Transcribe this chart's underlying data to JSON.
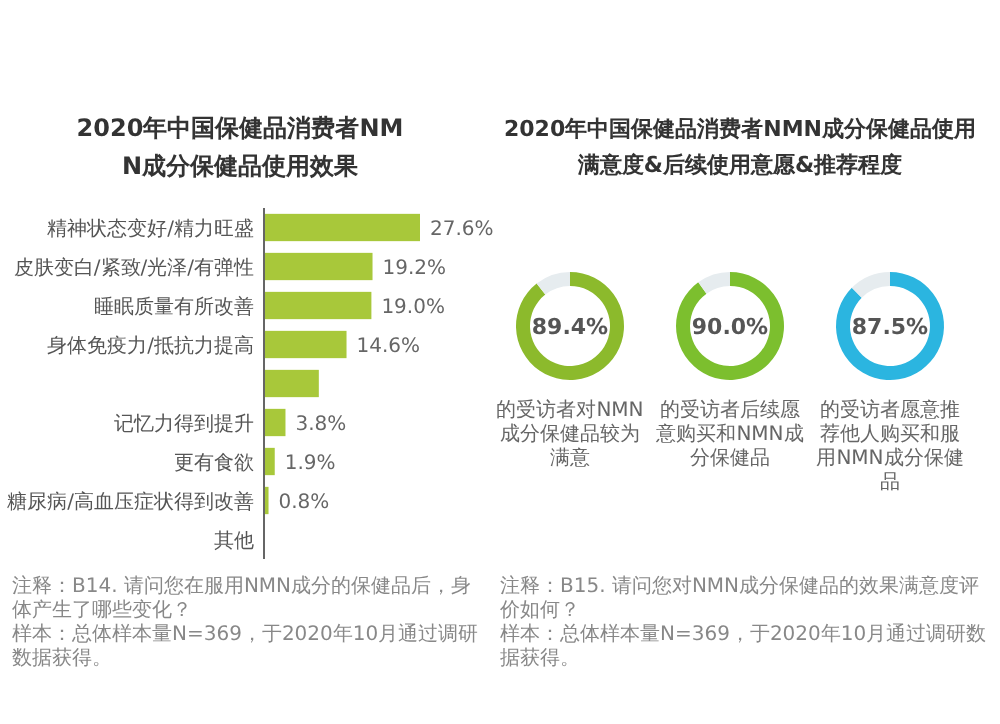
{
  "chart_data": [
    {
      "type": "bar",
      "orientation": "horizontal",
      "title": "2020年中国保健品消费者NMN成分保健品使用效果",
      "color": "#a8c83a",
      "categories": [
        "精神状态变好/精力旺盛",
        "皮肤变白/紧致/光泽/有弹性",
        "睡眠质量有所改善",
        "身体免疫力/抵抗力提高",
        null,
        "记忆力得到提升",
        "更有食欲",
        "糖尿病/高血压症状得到改善",
        "其他"
      ],
      "values": [
        27.6,
        19.2,
        19.0,
        14.6,
        9.7,
        3.8,
        1.9,
        0.8,
        null
      ],
      "value_labels": [
        "27.6%",
        "19.2%",
        "19.0%",
        "14.6%",
        null,
        "3.8%",
        "1.9%",
        "0.8%",
        null
      ],
      "annotations": [
        "注释：B14. 请问您在服用NMN成分的保健品后，身体产生了哪些变化？",
        "样本：总体样本量N=369，于2020年10月通过调研数据获得。"
      ]
    },
    {
      "type": "donut",
      "title": "2020年中国保健品消费者NMN成分保健品使用满意度&后续使用意愿&推荐程度",
      "categories": [
        "的受访者对NMN成分保健品较为满意",
        null
      ],
      "values": [
        89.4,
        10.6
      ],
      "colors": [
        "#8cba2c",
        "#e6ecef"
      ],
      "value_labels": [
        "89.4%",
        null
      ],
      "annotations": [
        "注释：B15. 请问您对NMN成分保健品的效果满意度评价如何？",
        "样本：总体样本量N=369，于2020年10月通过调研数据获得。"
      ]
    },
    {
      "type": "donut",
      "categories": [
        "的受访者后续愿意购买和NMN成分保健品",
        null
      ],
      "values": [
        90.0,
        10.0
      ],
      "colors": [
        "#7cbf2e",
        "#e6ecef"
      ],
      "value_labels": [
        "90.0%",
        null
      ]
    },
    {
      "type": "donut",
      "categories": [
        "的受访者愿意推荐他人购买和服用NMN成分保健品",
        null
      ],
      "values": [
        87.5,
        12.5
      ],
      "colors": [
        "#2bb5e0",
        "#e6ecef"
      ],
      "value_labels": [
        "87.5%",
        null
      ]
    }
  ]
}
